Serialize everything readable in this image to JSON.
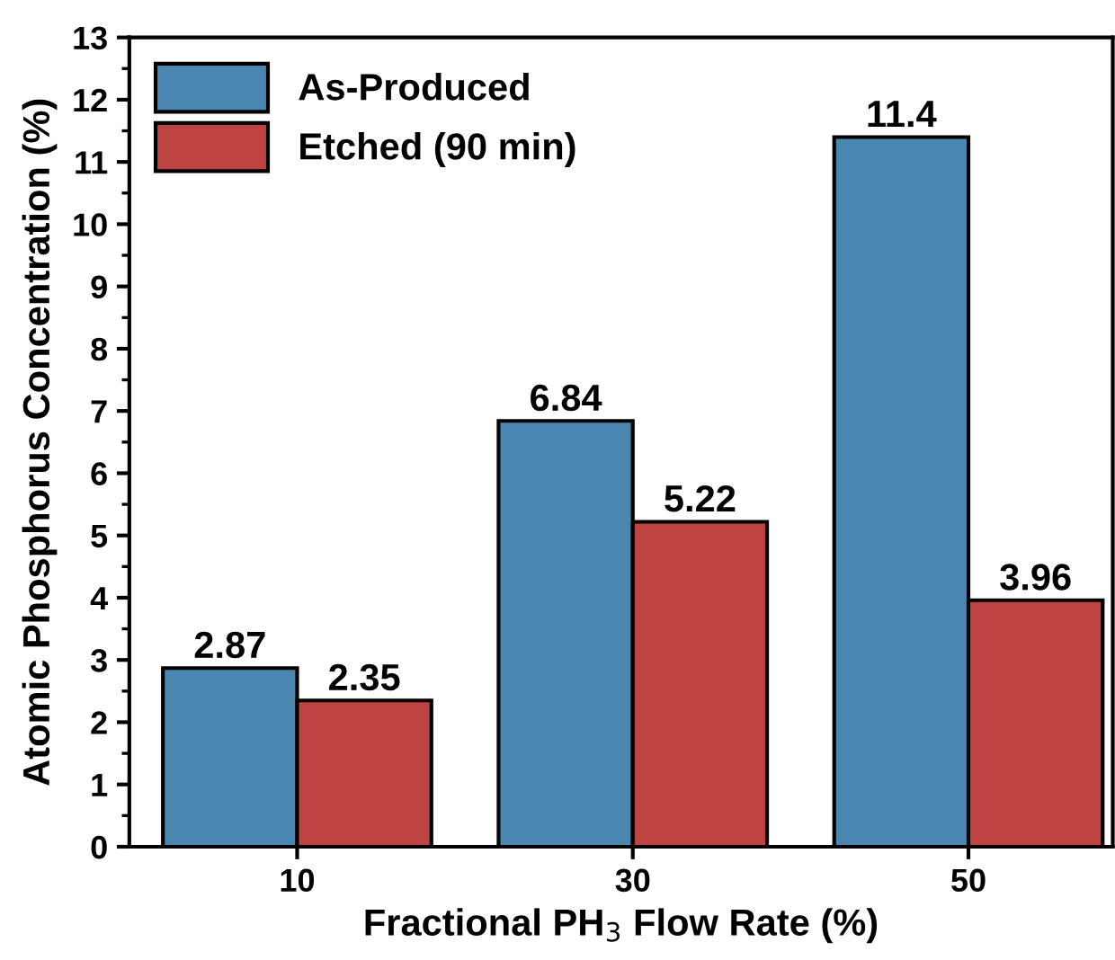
{
  "chart_data": {
    "type": "bar",
    "xlabel": "Fractional PH$_{3}$ Flow Rate (%)",
    "ylabel": "Atomic Phosphorus Concentration (%)",
    "categories": [
      "10",
      "30",
      "50"
    ],
    "series": [
      {
        "name": "As-Produced",
        "color": "#4a87b0",
        "values": [
          2.87,
          6.84,
          11.4
        ]
      },
      {
        "name": "Etched (90 min)",
        "color": "#bf4340",
        "values": [
          2.35,
          5.22,
          3.96
        ]
      }
    ],
    "ylim": [
      0,
      13
    ],
    "yticks": [
      0,
      1,
      2,
      3,
      4,
      5,
      6,
      7,
      8,
      9,
      10,
      11,
      12,
      13
    ],
    "data_labels": true,
    "legend": "top left",
    "grid": false
  }
}
